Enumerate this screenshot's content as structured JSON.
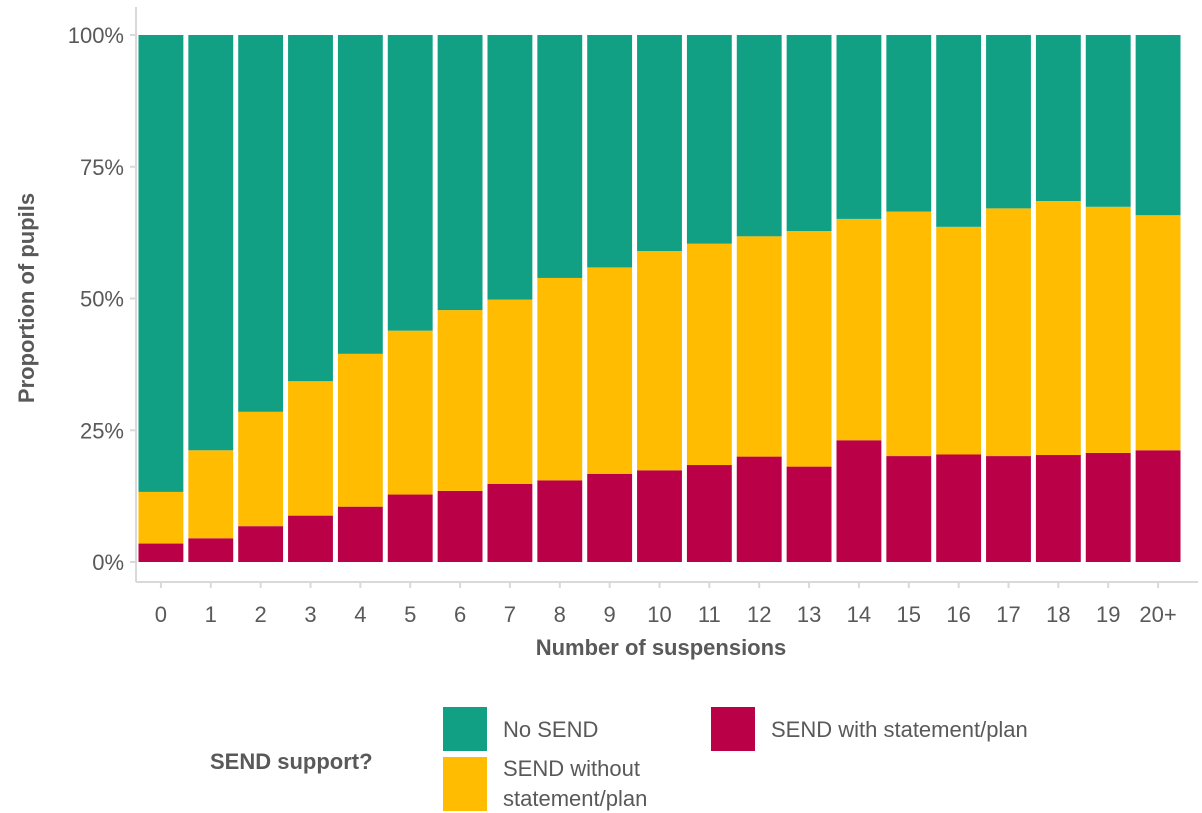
{
  "chart_data": {
    "type": "bar",
    "stacked": true,
    "normalized": true,
    "title": "",
    "xlabel": "Number of suspensions",
    "ylabel": "Proportion of pupils",
    "ylim": [
      0,
      1
    ],
    "yticks": [
      0,
      0.25,
      0.5,
      0.75,
      1
    ],
    "ytick_labels": [
      "0%",
      "25%",
      "50%",
      "75%",
      "100%"
    ],
    "categories": [
      "0",
      "1",
      "2",
      "3",
      "4",
      "5",
      "6",
      "7",
      "8",
      "9",
      "10",
      "11",
      "12",
      "13",
      "14",
      "15",
      "16",
      "17",
      "18",
      "19",
      "20+"
    ],
    "series": [
      {
        "name": "SEND with statement/plan",
        "color": "#BA0046",
        "values": [
          0.035,
          0.045,
          0.068,
          0.088,
          0.105,
          0.128,
          0.135,
          0.148,
          0.155,
          0.167,
          0.174,
          0.184,
          0.2,
          0.181,
          0.231,
          0.201,
          0.204,
          0.201,
          0.203,
          0.207,
          0.212
        ]
      },
      {
        "name": "SEND without statement/plan",
        "color": "#FFBC00",
        "values": [
          0.098,
          0.167,
          0.217,
          0.255,
          0.29,
          0.311,
          0.343,
          0.35,
          0.384,
          0.392,
          0.416,
          0.42,
          0.418,
          0.447,
          0.42,
          0.464,
          0.432,
          0.47,
          0.482,
          0.467,
          0.446
        ]
      },
      {
        "name": "No SEND",
        "color": "#12A084",
        "values": [
          0.867,
          0.788,
          0.715,
          0.657,
          0.605,
          0.561,
          0.522,
          0.502,
          0.461,
          0.441,
          0.41,
          0.396,
          0.382,
          0.372,
          0.349,
          0.335,
          0.364,
          0.329,
          0.315,
          0.326,
          0.342
        ]
      }
    ],
    "legend": {
      "title": "SEND support?",
      "position": "bottom",
      "items": [
        {
          "label": "No SEND",
          "color": "#12A084"
        },
        {
          "label": "SEND without statement/plan",
          "color": "#FFBC00"
        },
        {
          "label": "SEND with statement/plan",
          "color": "#BA0046"
        }
      ]
    },
    "grid": false
  }
}
